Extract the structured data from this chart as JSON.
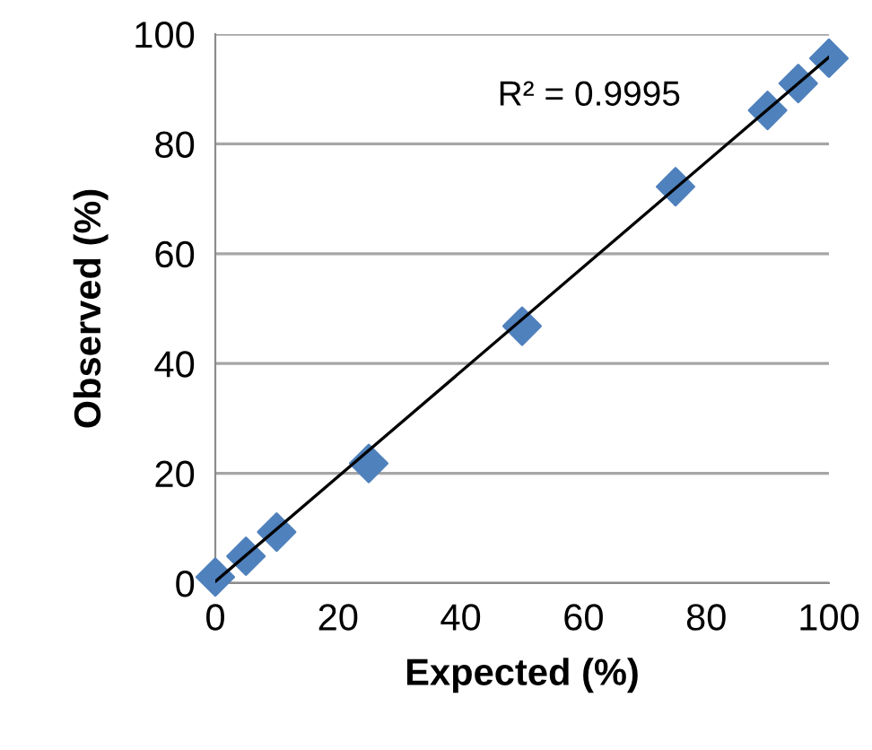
{
  "chart_data": {
    "type": "scatter",
    "xlabel": "Expected (%)",
    "ylabel": "Observed (%)",
    "xlim": [
      0,
      100
    ],
    "ylim": [
      0,
      100
    ],
    "xticks": [
      0,
      20,
      40,
      60,
      80,
      100
    ],
    "yticks": [
      0,
      20,
      40,
      60,
      80,
      100
    ],
    "grid": "y",
    "series": [
      {
        "marker": "diamond",
        "color": "#4f81bd",
        "x": [
          0,
          5,
          10,
          25,
          50,
          75,
          90,
          95,
          100
        ],
        "values": [
          1.1,
          4.9,
          9.3,
          21.8,
          46.8,
          72.2,
          86.1,
          91.0,
          95.6
        ]
      },
      {
        "type": "line",
        "marker": "none",
        "color": "#000000",
        "x": [
          0,
          100
        ],
        "values": [
          0.3,
          95.8
        ]
      }
    ],
    "annotations": [
      "R² = 0.9995"
    ]
  }
}
